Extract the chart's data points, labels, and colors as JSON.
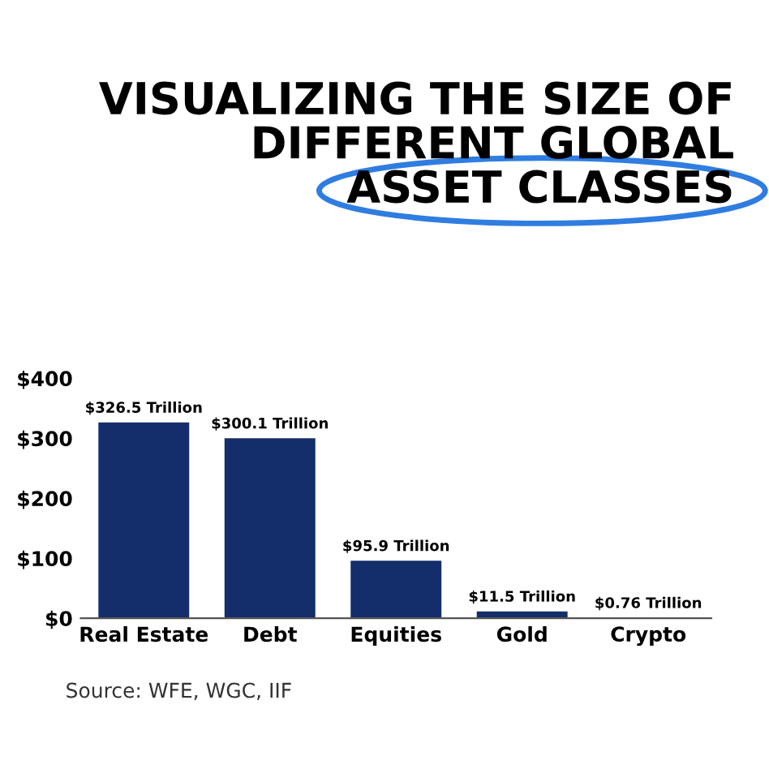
{
  "chart_data": {
    "type": "bar",
    "title": "VISUALIZING THE SIZE OF\nDIFFERENT GLOBAL\nASSET CLASSES",
    "categories": [
      "Real Estate",
      "Debt",
      "Equities",
      "Gold",
      "Crypto"
    ],
    "values": [
      326.5,
      300.1,
      95.9,
      11.5,
      0.76
    ],
    "color": "#132e6b",
    "value_labels": [
      "$326.5 Trillion",
      "$300.1 Trillion",
      "$95.9 Trillion",
      "$11.5 Trillion",
      "$0.76 Trillion"
    ],
    "ylim": [
      0,
      400
    ],
    "yticks": [
      {
        "value": 0,
        "label": "$0"
      },
      {
        "value": 100,
        "label": "$100"
      },
      {
        "value": 200,
        "label": "$200"
      },
      {
        "value": 300,
        "label": "$300"
      },
      {
        "value": 400,
        "label": "$400"
      }
    ],
    "grid": false,
    "legend": false,
    "annotations": [
      "Source: WFE, WGC, IIF"
    ]
  }
}
